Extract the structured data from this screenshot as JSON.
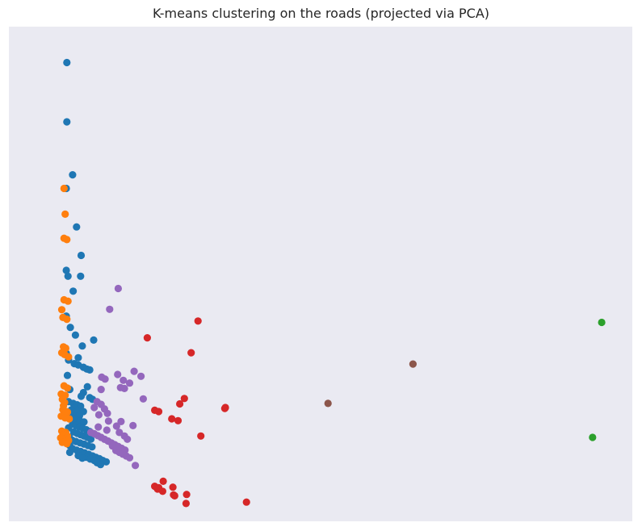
{
  "chart_data": {
    "type": "scatter",
    "title": "K-means clustering on the roads (projected via PCA)",
    "xlabel": "",
    "ylabel": "",
    "axes_visible": false,
    "grid": false,
    "plot_background": "#eaeaf2",
    "xlim": [
      0,
      100
    ],
    "ylim": [
      0,
      100
    ],
    "series": [
      {
        "color": "#1f77b4",
        "points": [
          [
            5.5,
            96.7
          ],
          [
            5.5,
            83.6
          ],
          [
            6.5,
            71.9
          ],
          [
            5.4,
            68.9
          ],
          [
            7.2,
            60.4
          ],
          [
            8.0,
            54.1
          ],
          [
            5.4,
            50.8
          ],
          [
            5.7,
            49.5
          ],
          [
            7.9,
            49.5
          ],
          [
            6.6,
            46.2
          ],
          [
            5.4,
            40.7
          ],
          [
            6.1,
            38.2
          ],
          [
            7.0,
            36.5
          ],
          [
            10.2,
            35.4
          ],
          [
            8.2,
            34.1
          ],
          [
            5.4,
            32.5
          ],
          [
            7.5,
            31.5
          ],
          [
            5.8,
            31.0
          ],
          [
            6.8,
            30.2
          ],
          [
            7.5,
            29.9
          ],
          [
            8.4,
            29.4
          ],
          [
            9.0,
            29.0
          ],
          [
            9.5,
            28.8
          ],
          [
            5.6,
            27.6
          ],
          [
            9.1,
            25.1
          ],
          [
            6.0,
            24.5
          ],
          [
            8.4,
            23.8
          ],
          [
            8.0,
            23.0
          ],
          [
            9.5,
            22.7
          ],
          [
            10.0,
            22.3
          ],
          [
            5.8,
            21.8
          ],
          [
            6.6,
            21.4
          ],
          [
            7.3,
            21.1
          ],
          [
            7.9,
            20.8
          ],
          [
            6.9,
            20.3
          ],
          [
            7.4,
            19.8
          ],
          [
            8.4,
            19.6
          ],
          [
            6.2,
            19.3
          ],
          [
            6.7,
            18.9
          ],
          [
            7.7,
            18.7
          ],
          [
            6.4,
            18.2
          ],
          [
            7.0,
            17.8
          ],
          [
            7.8,
            17.5
          ],
          [
            8.5,
            17.3
          ],
          [
            6.5,
            16.8
          ],
          [
            7.1,
            16.5
          ],
          [
            7.7,
            16.2
          ],
          [
            8.3,
            15.9
          ],
          [
            8.9,
            15.6
          ],
          [
            9.5,
            15.2
          ],
          [
            6.7,
            15.1
          ],
          [
            7.3,
            14.8
          ],
          [
            7.9,
            14.5
          ],
          [
            8.5,
            14.2
          ],
          [
            9.1,
            13.9
          ],
          [
            9.7,
            13.5
          ],
          [
            6.4,
            13.3
          ],
          [
            7.1,
            13.0
          ],
          [
            7.8,
            12.7
          ],
          [
            8.5,
            12.4
          ],
          [
            9.2,
            12.1
          ],
          [
            9.9,
            11.8
          ],
          [
            6.5,
            11.4
          ],
          [
            7.2,
            11.1
          ],
          [
            7.9,
            10.8
          ],
          [
            8.6,
            10.5
          ],
          [
            9.3,
            10.2
          ],
          [
            10.0,
            9.8
          ],
          [
            10.6,
            9.5
          ],
          [
            11.2,
            9.2
          ],
          [
            11.8,
            8.8
          ],
          [
            12.4,
            8.5
          ],
          [
            8.9,
            9.5
          ],
          [
            9.6,
            9.1
          ],
          [
            10.3,
            8.8
          ],
          [
            10.8,
            8.3
          ],
          [
            11.4,
            7.9
          ],
          [
            6.0,
            12.1
          ],
          [
            6.0,
            10.6
          ],
          [
            7.5,
            9.9
          ],
          [
            8.2,
            9.3
          ],
          [
            5.8,
            16.0
          ],
          [
            5.9,
            14.0
          ],
          [
            6.3,
            20.0
          ]
        ]
      },
      {
        "color": "#ff7f0e",
        "points": [
          [
            5.0,
            68.9
          ],
          [
            5.2,
            63.2
          ],
          [
            5.0,
            57.9
          ],
          [
            5.5,
            57.6
          ],
          [
            5.0,
            44.3
          ],
          [
            5.7,
            44.0
          ],
          [
            4.6,
            42.1
          ],
          [
            4.8,
            40.4
          ],
          [
            5.5,
            40.0
          ],
          [
            4.9,
            33.9
          ],
          [
            5.3,
            33.6
          ],
          [
            4.6,
            32.6
          ],
          [
            5.1,
            32.2
          ],
          [
            5.8,
            31.7
          ],
          [
            5.0,
            25.3
          ],
          [
            5.6,
            24.8
          ],
          [
            4.5,
            23.5
          ],
          [
            5.2,
            23.2
          ],
          [
            4.7,
            22.3
          ],
          [
            5.1,
            21.6
          ],
          [
            4.8,
            20.0
          ],
          [
            5.6,
            19.5
          ],
          [
            4.5,
            18.6
          ],
          [
            5.2,
            18.2
          ],
          [
            5.4,
            19.6
          ],
          [
            4.6,
            15.3
          ],
          [
            5.3,
            15.0
          ],
          [
            4.8,
            14.5
          ],
          [
            5.6,
            14.2
          ],
          [
            4.4,
            13.8
          ],
          [
            5.1,
            13.5
          ],
          [
            5.8,
            13.2
          ],
          [
            4.7,
            12.8
          ],
          [
            5.5,
            12.5
          ],
          [
            4.9,
            20.9
          ],
          [
            5.9,
            18.0
          ]
        ]
      },
      {
        "color": "#2ca02c",
        "points": [
          [
            99.3,
            39.3
          ],
          [
            97.7,
            13.9
          ]
        ]
      },
      {
        "color": "#d62728",
        "points": [
          [
            28.5,
            39.6
          ],
          [
            19.6,
            35.9
          ],
          [
            27.3,
            32.6
          ],
          [
            26.1,
            22.5
          ],
          [
            25.3,
            21.3
          ],
          [
            33.3,
            20.5
          ],
          [
            33.2,
            20.3
          ],
          [
            20.9,
            19.9
          ],
          [
            21.6,
            19.6
          ],
          [
            23.9,
            18.0
          ],
          [
            25.0,
            17.6
          ],
          [
            29.0,
            14.2
          ],
          [
            22.4,
            4.2
          ],
          [
            20.9,
            3.1
          ],
          [
            21.6,
            2.8
          ],
          [
            21.4,
            2.5
          ],
          [
            22.3,
            2.0
          ],
          [
            24.1,
            2.9
          ],
          [
            24.2,
            1.2
          ],
          [
            24.4,
            1.0
          ],
          [
            26.5,
            1.3
          ],
          [
            26.4,
            -0.7
          ],
          [
            37.0,
            -0.4
          ]
        ]
      },
      {
        "color": "#9467bd",
        "points": [
          [
            14.5,
            46.8
          ],
          [
            13.0,
            42.2
          ],
          [
            17.3,
            28.5
          ],
          [
            14.4,
            27.8
          ],
          [
            18.5,
            27.4
          ],
          [
            11.6,
            27.2
          ],
          [
            12.2,
            26.8
          ],
          [
            15.4,
            26.5
          ],
          [
            16.5,
            25.9
          ],
          [
            14.9,
            24.9
          ],
          [
            15.6,
            24.7
          ],
          [
            11.5,
            24.5
          ],
          [
            18.9,
            22.4
          ],
          [
            10.8,
            21.8
          ],
          [
            11.5,
            21.2
          ],
          [
            10.3,
            20.5
          ],
          [
            12.1,
            20.2
          ],
          [
            12.6,
            19.2
          ],
          [
            11.1,
            18.9
          ],
          [
            15.0,
            17.4
          ],
          [
            17.1,
            16.5
          ],
          [
            14.2,
            16.4
          ],
          [
            12.5,
            15.5
          ],
          [
            9.7,
            15.0
          ],
          [
            10.3,
            14.7
          ],
          [
            10.9,
            14.3
          ],
          [
            11.5,
            13.9
          ],
          [
            12.1,
            13.5
          ],
          [
            12.7,
            13.1
          ],
          [
            13.3,
            12.7
          ],
          [
            13.9,
            12.3
          ],
          [
            14.5,
            11.9
          ],
          [
            15.1,
            11.5
          ],
          [
            15.7,
            11.1
          ],
          [
            14.7,
            15.0
          ],
          [
            15.6,
            14.2
          ],
          [
            16.1,
            13.5
          ],
          [
            13.5,
            12.0
          ],
          [
            14.1,
            11.0
          ],
          [
            14.7,
            10.6
          ],
          [
            15.3,
            10.2
          ],
          [
            15.9,
            9.8
          ],
          [
            16.5,
            9.4
          ],
          [
            17.5,
            7.7
          ],
          [
            11.0,
            16.2
          ],
          [
            12.8,
            17.5
          ]
        ]
      },
      {
        "color": "#8c564b",
        "points": [
          [
            66.2,
            30.1
          ],
          [
            51.3,
            21.4
          ]
        ]
      }
    ]
  }
}
